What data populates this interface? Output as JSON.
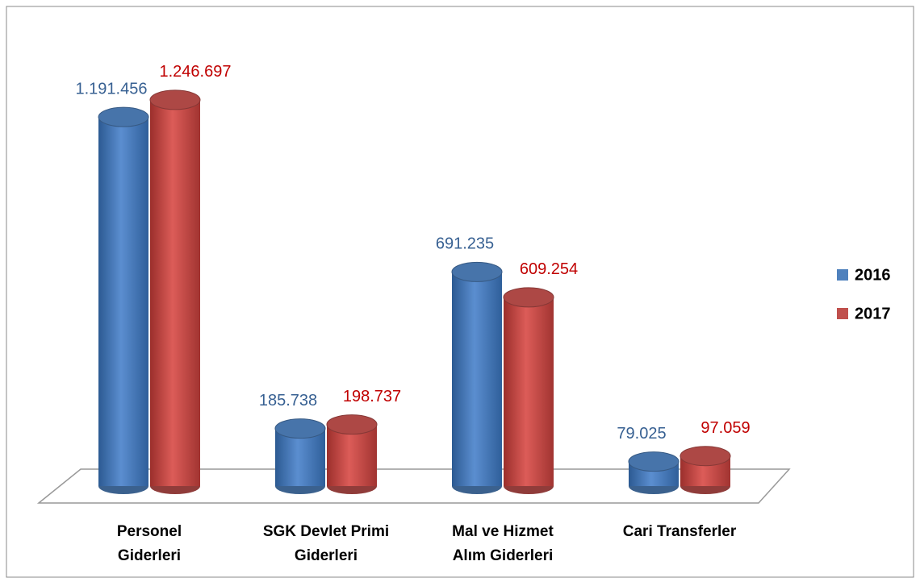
{
  "chart_data": {
    "type": "bar",
    "style": "3d-cylinder",
    "categories": [
      "Personel Giderleri",
      "SGK Devlet Primi Giderleri",
      "Mal ve Hizmet Alım Giderleri",
      "Cari Transferler"
    ],
    "series": [
      {
        "name": "2016",
        "color": "#4f81bd",
        "label_color": "#376092",
        "values": [
          1191456,
          185738,
          691235,
          79025
        ],
        "value_labels": [
          "1.191.456",
          "185.738",
          "691.235",
          "79.025"
        ]
      },
      {
        "name": "2017",
        "color": "#c0504d",
        "label_color": "#c00000",
        "values": [
          1246697,
          198737,
          609254,
          97059
        ],
        "value_labels": [
          "1.246.697",
          "198.737",
          "609.254",
          "97.059"
        ]
      }
    ],
    "ylim": [
      0,
      1400000
    ],
    "legend": "right",
    "grid": false
  }
}
